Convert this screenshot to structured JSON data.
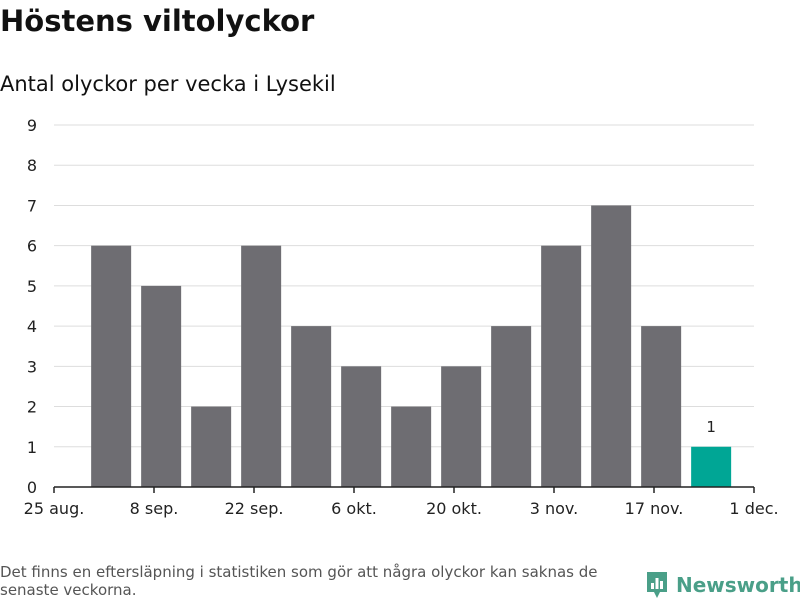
{
  "title": "Höstens viltolyckor",
  "subtitle": "Antal olyckor per vecka i Lysekil",
  "footnote": "Det finns en eftersläpning i statistiken som gör att några olyckor kan saknas de senaste veckorna.",
  "brand": {
    "name": "Newsworthy",
    "icon": "newsworthy-bar-chart-icon"
  },
  "colors": {
    "bar": "#6e6d72",
    "highlight": "#00a695",
    "grid": "#dddddd",
    "axis": "#222222",
    "brand": "#4a9f88"
  },
  "chart_data": {
    "type": "bar",
    "x": [
      "2019-09-02",
      "2019-09-09",
      "2019-09-16",
      "2019-09-23",
      "2019-09-30",
      "2019-10-07",
      "2019-10-14",
      "2019-10-21",
      "2019-10-28",
      "2019-11-04",
      "2019-11-11",
      "2019-11-18",
      "2019-11-25"
    ],
    "values": [
      6,
      5,
      2,
      6,
      4,
      3,
      2,
      3,
      4,
      6,
      7,
      4,
      1
    ],
    "highlight_index": 12,
    "data_labels": [
      null,
      null,
      null,
      null,
      null,
      null,
      null,
      null,
      null,
      null,
      null,
      null,
      "1"
    ],
    "xticks": [
      "25 aug.",
      "8 sep.",
      "22 sep.",
      "6 okt.",
      "20 okt.",
      "3 nov.",
      "17 nov.",
      "1 dec."
    ],
    "xtick_dates": [
      "2019-08-25",
      "2019-09-08",
      "2019-09-22",
      "2019-10-06",
      "2019-10-20",
      "2019-11-03",
      "2019-11-17",
      "2019-12-01"
    ],
    "xlim": [
      "2019-08-25",
      "2019-12-01"
    ],
    "yticks": [
      0,
      1,
      2,
      3,
      4,
      5,
      6,
      7,
      8,
      9
    ],
    "ylim": [
      0,
      9
    ],
    "grid": true,
    "xlabel": "",
    "ylabel": ""
  }
}
